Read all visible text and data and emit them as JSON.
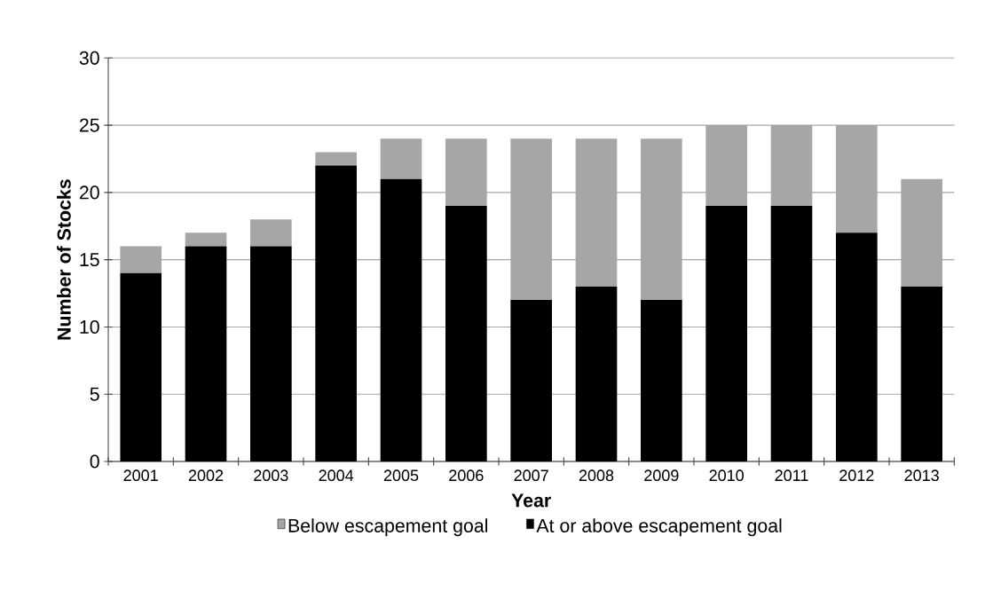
{
  "chart_data": {
    "type": "bar",
    "stacked": true,
    "xlabel": "Year",
    "ylabel": "Number of Stocks",
    "categories": [
      "2001",
      "2002",
      "2003",
      "2004",
      "2005",
      "2006",
      "2007",
      "2008",
      "2009",
      "2010",
      "2011",
      "2012",
      "2013"
    ],
    "series": [
      {
        "name": "At or above escapement goal",
        "color": "#000000",
        "values": [
          14,
          16,
          16,
          22,
          21,
          19,
          12,
          13,
          12,
          19,
          19,
          17,
          13
        ]
      },
      {
        "name": "Below escapement goal",
        "color": "#a6a6a6",
        "values": [
          2,
          1,
          2,
          1,
          3,
          5,
          12,
          11,
          12,
          6,
          6,
          8,
          8
        ]
      }
    ],
    "ylim": [
      0,
      30
    ],
    "yticks": [
      0,
      5,
      10,
      15,
      20,
      25,
      30
    ],
    "grid": "y",
    "legend": "bottom"
  }
}
